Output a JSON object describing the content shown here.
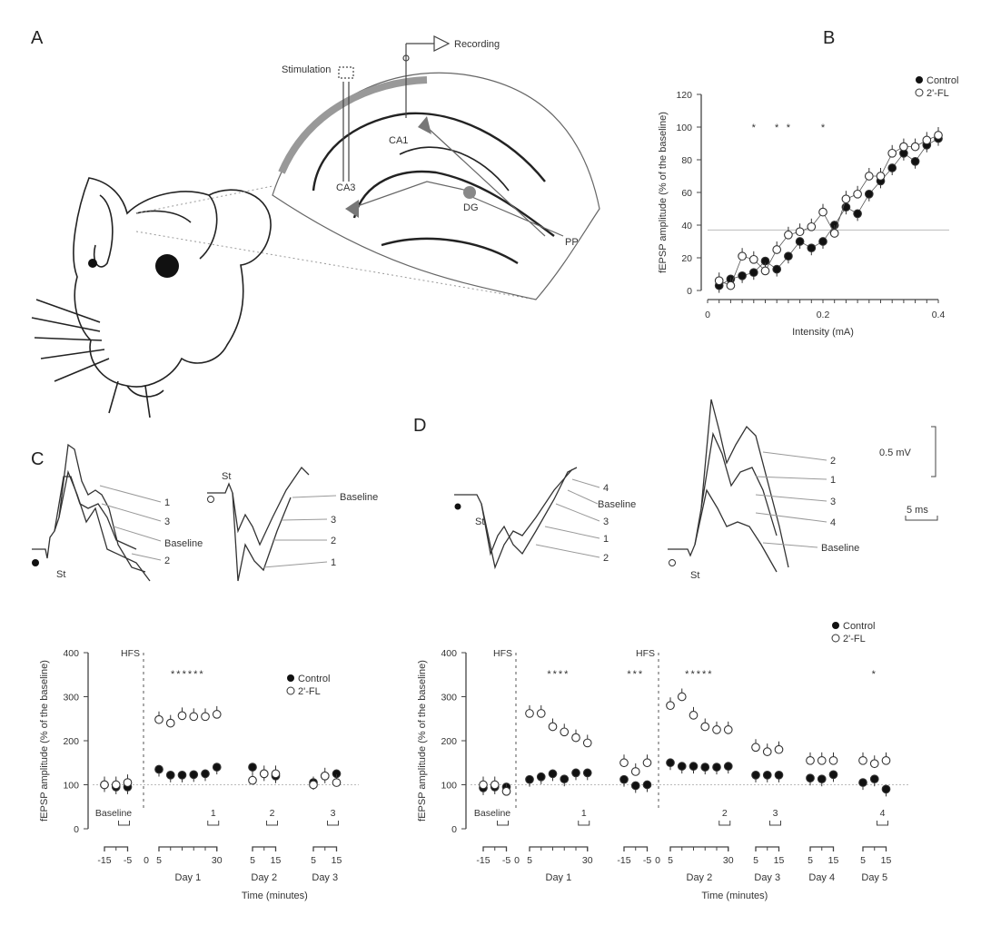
{
  "panel_a": {
    "label": "A",
    "stimulation": "Stimulation",
    "recording": "Recording",
    "ca1": "CA1",
    "ca3": "CA3",
    "dg": "DG",
    "pp": "PP"
  },
  "panel_c": {
    "label": "C",
    "st": "St",
    "left_trace_labels": [
      "1",
      "3",
      "Baseline",
      "2"
    ],
    "right_trace_labels": [
      "Baseline",
      "3",
      "2",
      "1"
    ]
  },
  "panel_d": {
    "label": "D",
    "st": "St",
    "left_trace_labels": [
      "4",
      "Baseline",
      "3",
      "1",
      "2"
    ],
    "right_trace_labels": [
      "2",
      "1",
      "3",
      "4",
      "Baseline"
    ],
    "scalebar_amplitude": "0.5 mV",
    "scalebar_time": "5 ms"
  },
  "chart_data": [
    {
      "panel": "B",
      "type": "scatter",
      "xlabel": "Intensity (mA)",
      "ylabel": "fEPSP amplitude (% of the baseline)",
      "xlim": [
        0,
        0.4
      ],
      "ylim": [
        0,
        120
      ],
      "x_ticks": [
        "0",
        "0.2",
        "0.4"
      ],
      "y_ticks": [
        "0",
        "20",
        "40",
        "60",
        "80",
        "100",
        "120"
      ],
      "reference_line_y": 37,
      "legend_position": "top-right",
      "x": [
        0.02,
        0.04,
        0.06,
        0.08,
        0.1,
        0.12,
        0.14,
        0.16,
        0.18,
        0.2,
        0.22,
        0.24,
        0.26,
        0.28,
        0.3,
        0.32,
        0.34,
        0.36,
        0.38,
        0.4
      ],
      "series": [
        {
          "name": "Control",
          "marker": "filled",
          "values": [
            3,
            7,
            9,
            11,
            18,
            13,
            21,
            30,
            26,
            30,
            40,
            51,
            47,
            59,
            67,
            75,
            84,
            79,
            89,
            93
          ]
        },
        {
          "name": "2'-FL",
          "marker": "open",
          "values": [
            6,
            3,
            21,
            19,
            12,
            25,
            34,
            36,
            39,
            48,
            35,
            56,
            59,
            70,
            70,
            84,
            88,
            88,
            92,
            95
          ]
        }
      ],
      "significance_x": [
        0.08,
        0.12,
        0.14,
        0.2
      ],
      "significance_mark": "*"
    },
    {
      "panel": "C",
      "type": "scatter",
      "ylabel": "fEPSP amplitude (% of the baseline)",
      "xlabel": "Time (minutes)",
      "ylim": [
        0,
        400
      ],
      "y_ticks": [
        "0",
        "100",
        "200",
        "300",
        "400"
      ],
      "reference_line_y": 100,
      "hfs_label": "HFS",
      "legend_position": "top-right",
      "series_names": [
        "Control",
        "2'-FL"
      ],
      "groups": [
        {
          "day": "",
          "times": [
            -15,
            -10,
            -5
          ],
          "control": [
            100,
            95,
            95
          ],
          "fl": [
            100,
            100,
            105
          ],
          "bracket": "Baseline",
          "tick_labels": [
            "-15",
            "-5"
          ],
          "stars": ""
        },
        {
          "day": "Day 1",
          "times": [
            5,
            10,
            15,
            20,
            25,
            30
          ],
          "control": [
            135,
            122,
            122,
            123,
            125,
            140
          ],
          "fl": [
            248,
            240,
            257,
            255,
            255,
            260
          ],
          "bracket": "1",
          "tick_labels": [
            "0",
            "5",
            "30"
          ],
          "stars": "******"
        },
        {
          "day": "Day 2",
          "times": [
            5,
            10,
            15
          ],
          "control": [
            140,
            125,
            120
          ],
          "fl": [
            110,
            125,
            125
          ],
          "bracket": "2",
          "tick_labels": [
            "5",
            "15"
          ],
          "stars": ""
        },
        {
          "day": "Day 3",
          "times": [
            5,
            10,
            15
          ],
          "control": [
            105,
            120,
            125
          ],
          "fl": [
            100,
            120,
            105
          ],
          "bracket": "3",
          "tick_labels": [
            "5",
            "15"
          ],
          "stars": ""
        }
      ]
    },
    {
      "panel": "D",
      "type": "scatter",
      "ylabel": "fEPSP amplitude (% of the baseline)",
      "xlabel": "Time (minutes)",
      "ylim": [
        0,
        400
      ],
      "y_ticks": [
        "0",
        "100",
        "200",
        "300",
        "400"
      ],
      "reference_line_y": 100,
      "hfs_label": "HFS",
      "legend_position": "top-right",
      "series_names": [
        "Control",
        "2'-FL"
      ],
      "groups": [
        {
          "day": "",
          "times": [
            -15,
            -10,
            -5
          ],
          "control": [
            93,
            95,
            95
          ],
          "fl": [
            100,
            100,
            85
          ],
          "bracket": "Baseline",
          "tick_labels": [
            "-15",
            "-5"
          ],
          "stars": ""
        },
        {
          "day": "Day 1",
          "times": [
            5,
            10,
            15,
            20,
            25,
            30
          ],
          "control": [
            112,
            118,
            125,
            113,
            127,
            127
          ],
          "fl": [
            262,
            262,
            232,
            220,
            207,
            195
          ],
          "bracket": "1",
          "tick_labels": [
            "0",
            "5",
            "30"
          ],
          "stars": "****"
        },
        {
          "day": "",
          "times": [
            -15,
            -10,
            -5
          ],
          "control": [
            112,
            98,
            100
          ],
          "fl": [
            150,
            130,
            150
          ],
          "bracket": "",
          "tick_labels": [
            "-15",
            "-5"
          ],
          "stars": "***"
        },
        {
          "day": "Day 2",
          "times": [
            5,
            10,
            15,
            20,
            25,
            30
          ],
          "control": [
            150,
            142,
            142,
            140,
            140,
            142
          ],
          "fl": [
            280,
            300,
            258,
            232,
            225,
            225
          ],
          "bracket": "2",
          "tick_labels": [
            "0",
            "5",
            "30"
          ],
          "stars": "*****"
        },
        {
          "day": "Day 3",
          "times": [
            5,
            10,
            15
          ],
          "control": [
            122,
            122,
            122
          ],
          "fl": [
            185,
            175,
            180
          ],
          "bracket": "3",
          "tick_labels": [
            "5",
            "15"
          ],
          "stars": ""
        },
        {
          "day": "Day 4",
          "times": [
            5,
            10,
            15
          ],
          "control": [
            115,
            113,
            123
          ],
          "fl": [
            155,
            155,
            155
          ],
          "bracket": "",
          "tick_labels": [
            "5",
            "15"
          ],
          "stars": ""
        },
        {
          "day": "Day 5",
          "times": [
            5,
            10,
            15
          ],
          "control": [
            105,
            113,
            90
          ],
          "fl": [
            155,
            148,
            155
          ],
          "bracket": "4",
          "tick_labels": [
            "5",
            "15"
          ],
          "stars": "*"
        }
      ]
    }
  ]
}
